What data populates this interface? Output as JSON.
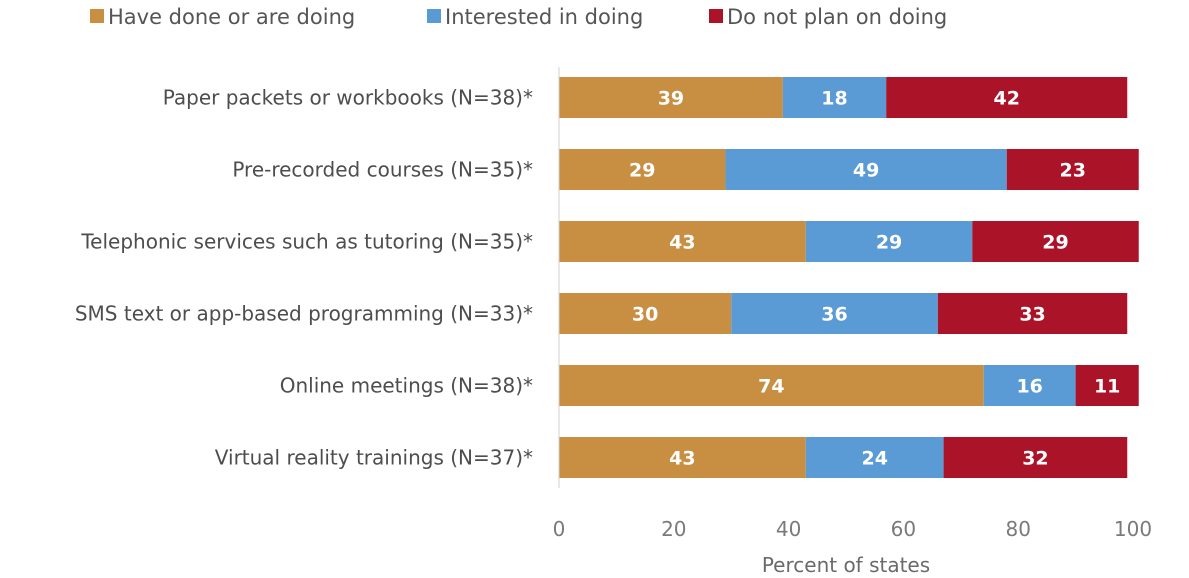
{
  "chart_data": {
    "type": "bar",
    "orientation": "horizontal",
    "stacked": true,
    "categories": [
      "Paper packets or workbooks (N=38)*",
      "Pre-recorded courses (N=35)*",
      "Telephonic services such as tutoring (N=35)*",
      "SMS text or app-based programming (N=33)*",
      "Online meetings (N=38)*",
      "Virtual reality trainings (N=37)*"
    ],
    "series": [
      {
        "name": "Have done or are doing",
        "color": "#c88f42",
        "values": [
          39,
          29,
          43,
          30,
          74,
          43
        ]
      },
      {
        "name": "Interested in doing",
        "color": "#5b9bd5",
        "values": [
          18,
          49,
          29,
          36,
          16,
          24
        ]
      },
      {
        "name": "Do not plan on doing",
        "color": "#ab1428",
        "values": [
          42,
          23,
          29,
          33,
          11,
          32
        ]
      }
    ],
    "xlabel": "Percent of states",
    "ylabel": "",
    "xlim": [
      0,
      100
    ],
    "xticks": [
      0,
      20,
      40,
      60,
      80,
      100
    ],
    "grid": false,
    "legend_position": "top-left"
  }
}
